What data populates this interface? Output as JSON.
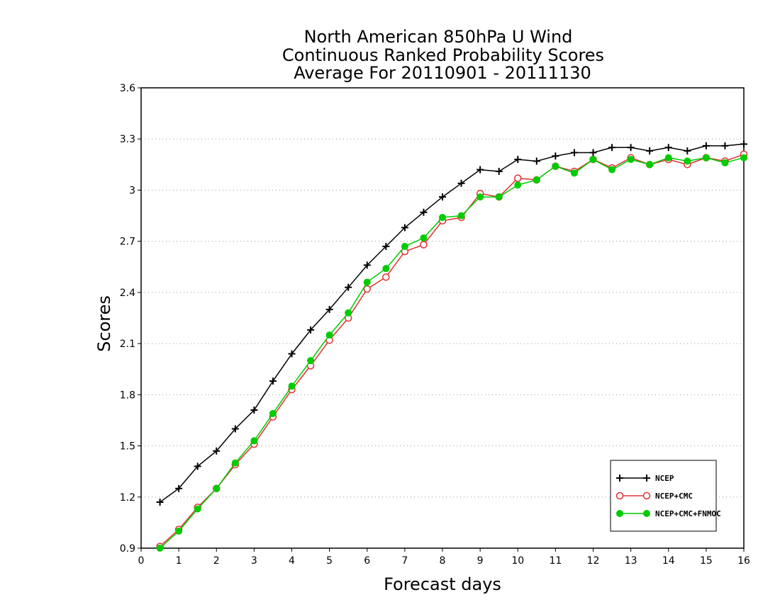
{
  "chart_data": {
    "type": "line",
    "title": [
      "North American 850hPa U Wind",
      "Continuous Ranked Probability Scores",
      "Average For 20110901 - 20111130"
    ],
    "xlabel": "Forecast days",
    "ylabel": "Scores",
    "xlim": [
      0,
      16
    ],
    "ylim": [
      0.9,
      3.6
    ],
    "xticks": [
      "0",
      "1",
      "2",
      "3",
      "4",
      "5",
      "6",
      "7",
      "8",
      "9",
      "10",
      "11",
      "12",
      "13",
      "14",
      "15",
      "16"
    ],
    "yticks": [
      "0.9",
      "1.2",
      "1.5",
      "1.8",
      "2.1",
      "2.4",
      "2.7",
      "3",
      "3.3",
      "3.6"
    ],
    "grid": true,
    "legend_position": "bottom-right",
    "x": [
      0.5,
      1,
      1.5,
      2,
      2.5,
      3,
      3.5,
      4,
      4.5,
      5,
      5.5,
      6,
      6.5,
      7,
      7.5,
      8,
      8.5,
      9,
      9.5,
      10,
      10.5,
      11,
      11.5,
      12,
      12.5,
      13,
      13.5,
      14,
      14.5,
      15,
      15.5,
      16
    ],
    "series": [
      {
        "name": "NCEP",
        "color": "#000000",
        "marker": "plus",
        "values": [
          1.17,
          1.25,
          1.38,
          1.47,
          1.6,
          1.71,
          1.88,
          2.04,
          2.18,
          2.3,
          2.43,
          2.56,
          2.67,
          2.78,
          2.87,
          2.96,
          3.04,
          3.12,
          3.11,
          3.18,
          3.17,
          3.2,
          3.22,
          3.22,
          3.25,
          3.25,
          3.23,
          3.25,
          3.23,
          3.26,
          3.26,
          3.27
        ]
      },
      {
        "name": "NCEP+CMC",
        "color": "#e03030",
        "marker": "open-circle",
        "values": [
          0.91,
          1.01,
          1.14,
          1.25,
          1.39,
          1.51,
          1.67,
          1.83,
          1.97,
          2.12,
          2.25,
          2.42,
          2.49,
          2.64,
          2.68,
          2.82,
          2.84,
          2.98,
          2.96,
          3.07,
          3.06,
          3.14,
          3.11,
          3.18,
          3.13,
          3.19,
          3.15,
          3.18,
          3.15,
          3.19,
          3.17,
          3.21
        ]
      },
      {
        "name": "NCEP+CMC+FNMOC",
        "color": "#00cc00",
        "marker": "filled-circle",
        "values": [
          0.9,
          1.0,
          1.13,
          1.25,
          1.4,
          1.53,
          1.69,
          1.85,
          2.0,
          2.15,
          2.28,
          2.46,
          2.54,
          2.67,
          2.72,
          2.84,
          2.85,
          2.96,
          2.96,
          3.03,
          3.06,
          3.14,
          3.1,
          3.18,
          3.12,
          3.18,
          3.15,
          3.19,
          3.17,
          3.19,
          3.16,
          3.19
        ]
      }
    ]
  }
}
